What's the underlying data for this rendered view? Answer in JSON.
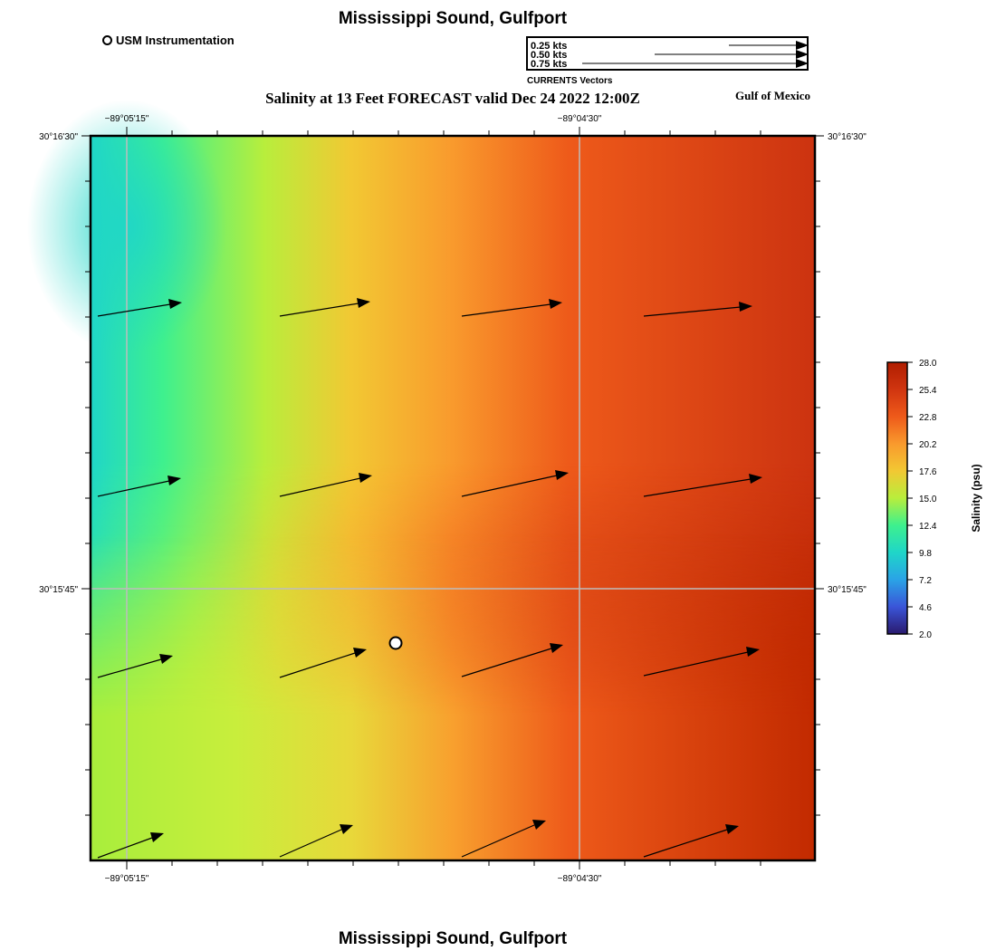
{
  "header": {
    "title": "Mississippi Sound, Gulfport",
    "subtitle": "Salinity at 13 Feet FORECAST valid Dec 24 2022 12:00Z",
    "region": "Gulf of Mexico",
    "station_legend": "USM Instrumentation"
  },
  "footer": {
    "title": "Mississippi Sound, Gulfport"
  },
  "vector_legend": {
    "caption": "CURRENTS Vectors",
    "entries": [
      "0.25 kts",
      "0.50 kts",
      "0.75 kts"
    ]
  },
  "map": {
    "lon_ticks": [
      "−89°05'15\"",
      "−89°04'30\""
    ],
    "lat_ticks": [
      "30°16'30\"",
      "30°15'45\""
    ],
    "current_arrows": "black-vector-arrows",
    "station_marker": "white-circle-marker"
  },
  "colorbar": {
    "title": "Salinity (psu)",
    "ticks": [
      "28.0",
      "25.4",
      "22.8",
      "20.2",
      "17.6",
      "15.0",
      "12.4",
      "9.8",
      "7.2",
      "4.6",
      "2.0"
    ],
    "colors": [
      "#2a1a6e",
      "#3a55d8",
      "#2aa3e6",
      "#1fd6c8",
      "#3ef08e",
      "#b8ee3c",
      "#f2c833",
      "#f99a2d",
      "#ee5a1a",
      "#d03510",
      "#b01d00"
    ]
  }
}
